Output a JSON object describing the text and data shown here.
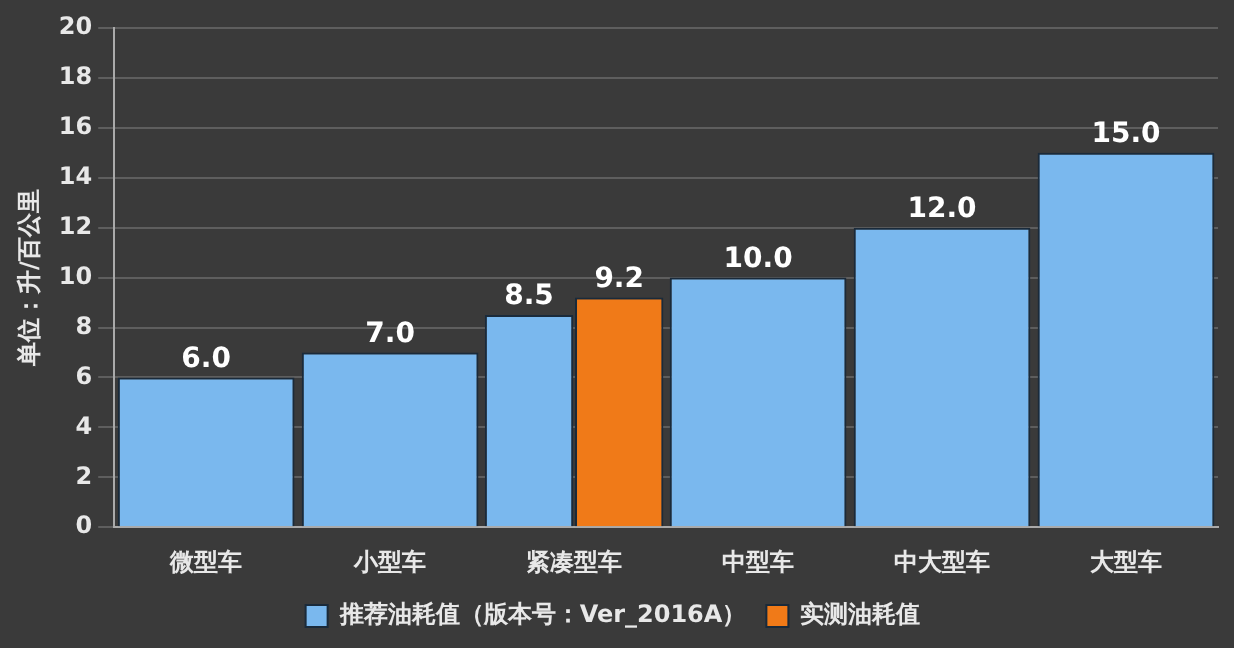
{
  "chart_data": {
    "type": "bar",
    "ylabel": "单位：升/百公里",
    "categories": [
      "微型车",
      "小型车",
      "紧凑型车",
      "中型车",
      "中大型车",
      "大型车"
    ],
    "series": [
      {
        "name": "推荐油耗值（版本号：Ver_2016A）",
        "color": "#7ab8ee",
        "values": [
          6,
          7,
          8.5,
          10,
          12,
          15
        ],
        "value_labels": [
          "6.0",
          "7.0",
          "8.5",
          "10.0",
          "12.0",
          "15.0"
        ]
      },
      {
        "name": "实测油耗值",
        "color": "#f07a18",
        "values": [
          null,
          null,
          9.2,
          null,
          null,
          null
        ],
        "value_labels": [
          null,
          null,
          "9.2",
          null,
          null,
          null
        ]
      }
    ],
    "ylim": [
      0,
      20
    ],
    "yticks": [
      0,
      2,
      4,
      6,
      8,
      10,
      12,
      14,
      16,
      18,
      20
    ],
    "grid": "y",
    "legend": "bottom"
  }
}
